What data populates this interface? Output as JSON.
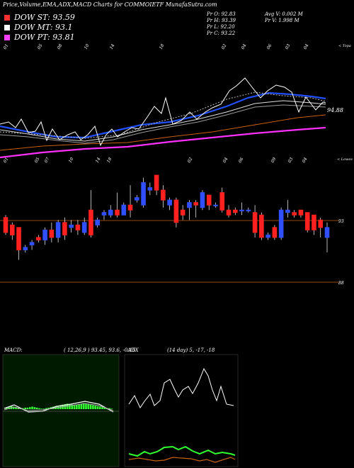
{
  "title": "Price,Volume,EMA,ADX,MACD Charts for COMMOIETF MunafaSutra.com",
  "legend": [
    {
      "label": "DOW ST: 93.59",
      "color": "#ff3030"
    },
    {
      "label": "DOW MT: 93.1",
      "color": "#ffffff"
    },
    {
      "label": "DOW PT: 93.81",
      "color": "#ff40ff"
    }
  ],
  "stats": {
    "pr_o": "Pr O: 92.83",
    "pr_h": "Pr H: 93.39",
    "pr_l": "Pr L: 92.20",
    "pr_c": "Pr C: 93.22",
    "avg_v": "Avg V: 0.002 M",
    "pr_v": "Pr V: 1.998 M"
  },
  "top_panel": {
    "right_label": "< Topa",
    "price_label": "94.88",
    "date_ticks": [
      "01",
      "05",
      "08",
      "10",
      "14",
      "18",
      "02",
      "04",
      "06",
      "03",
      "04"
    ]
  },
  "mid_panel": {
    "right_label": "< Lowes",
    "date_ticks": [
      "01",
      "05",
      "07",
      "10",
      "14",
      "18",
      "02",
      "04",
      "06",
      "09",
      "03",
      "04"
    ],
    "price_labels": [
      "93",
      "88"
    ]
  },
  "macd": {
    "label": "MACD:",
    "params": "( 12,26,9 ) 93.45, 93.6, -0.15"
  },
  "adx": {
    "label": "ADX",
    "params": "(14 day) 5, -17, -18"
  },
  "colors": {
    "up": "#3050ff",
    "down": "#ff2020",
    "ema_blue": "#2050ff",
    "ema_orange": "#c86010",
    "ema_magenta": "#ff30ff",
    "macd_green": "#30ff30",
    "adx_green": "#30ff30",
    "adx_brown": "#c86010"
  },
  "chart_data": {
    "type": "candlestick",
    "candles": [
      {
        "o": 93.6,
        "h": 93.7,
        "l": 92.9,
        "c": 93.0
      },
      {
        "o": 93.3,
        "h": 93.4,
        "l": 92.7,
        "c": 92.9
      },
      {
        "o": 93.2,
        "h": 93.2,
        "l": 91.9,
        "c": 92.3
      },
      {
        "o": 92.3,
        "h": 92.5,
        "l": 92.2,
        "c": 92.4
      },
      {
        "o": 92.5,
        "h": 92.7,
        "l": 92.3,
        "c": 92.6
      },
      {
        "o": 92.8,
        "h": 92.9,
        "l": 92.6,
        "c": 92.7
      },
      {
        "o": 92.7,
        "h": 93.2,
        "l": 92.5,
        "c": 93.1
      },
      {
        "o": 93.1,
        "h": 93.4,
        "l": 92.6,
        "c": 92.8
      },
      {
        "o": 92.8,
        "h": 93.5,
        "l": 92.6,
        "c": 93.4
      },
      {
        "o": 93.4,
        "h": 93.6,
        "l": 92.7,
        "c": 92.9
      },
      {
        "o": 93.2,
        "h": 93.5,
        "l": 93.0,
        "c": 93.3
      },
      {
        "o": 93.3,
        "h": 93.5,
        "l": 92.9,
        "c": 93.1
      },
      {
        "o": 93.0,
        "h": 93.6,
        "l": 92.9,
        "c": 93.4
      },
      {
        "o": 93.9,
        "h": 94.7,
        "l": 92.8,
        "c": 92.9
      },
      {
        "o": 93.3,
        "h": 93.6,
        "l": 93.2,
        "c": 93.5
      },
      {
        "o": 93.7,
        "h": 93.9,
        "l": 93.5,
        "c": 93.8
      },
      {
        "o": 93.7,
        "h": 94.1,
        "l": 93.6,
        "c": 93.9
      },
      {
        "o": 93.9,
        "h": 94.6,
        "l": 93.6,
        "c": 93.7
      },
      {
        "o": 93.7,
        "h": 94.2,
        "l": 93.7,
        "c": 94.1
      },
      {
        "o": 94.1,
        "h": 94.9,
        "l": 93.6,
        "c": 93.9
      },
      {
        "o": 94.3,
        "h": 94.5,
        "l": 94.2,
        "c": 94.4
      },
      {
        "o": 94.1,
        "h": 95.2,
        "l": 94.0,
        "c": 95.0
      },
      {
        "o": 94.7,
        "h": 95.0,
        "l": 94.5,
        "c": 94.8
      },
      {
        "o": 95.3,
        "h": 95.3,
        "l": 94.5,
        "c": 94.7
      },
      {
        "o": 94.7,
        "h": 94.9,
        "l": 94.0,
        "c": 94.3
      },
      {
        "o": 94.1,
        "h": 94.4,
        "l": 93.9,
        "c": 94.3
      },
      {
        "o": 94.3,
        "h": 94.4,
        "l": 93.2,
        "c": 93.4
      },
      {
        "o": 93.9,
        "h": 94.1,
        "l": 93.5,
        "c": 93.7
      },
      {
        "o": 94.0,
        "h": 94.3,
        "l": 93.5,
        "c": 94.2
      },
      {
        "o": 94.2,
        "h": 94.3,
        "l": 93.6,
        "c": 94.1
      },
      {
        "o": 94.0,
        "h": 94.7,
        "l": 93.9,
        "c": 94.6
      },
      {
        "o": 94.5,
        "h": 94.5,
        "l": 93.9,
        "c": 94.1
      },
      {
        "o": 94.1,
        "h": 94.2,
        "l": 94.0,
        "c": 94.1
      },
      {
        "o": 94.6,
        "h": 94.8,
        "l": 93.8,
        "c": 93.9
      },
      {
        "o": 93.9,
        "h": 94.1,
        "l": 93.6,
        "c": 93.7
      },
      {
        "o": 93.9,
        "h": 94.0,
        "l": 93.7,
        "c": 93.8
      },
      {
        "o": 93.9,
        "h": 94.2,
        "l": 93.7,
        "c": 93.9
      },
      {
        "o": 93.9,
        "h": 94.0,
        "l": 93.8,
        "c": 93.9
      },
      {
        "o": 93.8,
        "h": 94.1,
        "l": 92.8,
        "c": 93.0
      },
      {
        "o": 93.7,
        "h": 93.8,
        "l": 92.7,
        "c": 92.8
      },
      {
        "o": 92.8,
        "h": 93.0,
        "l": 92.7,
        "c": 92.9
      },
      {
        "o": 93.2,
        "h": 93.3,
        "l": 92.7,
        "c": 92.8
      },
      {
        "o": 92.8,
        "h": 94.0,
        "l": 92.7,
        "c": 93.9
      },
      {
        "o": 93.8,
        "h": 94.3,
        "l": 93.6,
        "c": 93.9
      },
      {
        "o": 93.8,
        "h": 93.9,
        "l": 93.6,
        "c": 93.7
      },
      {
        "o": 93.9,
        "h": 93.9,
        "l": 93.6,
        "c": 93.7
      },
      {
        "o": 93.8,
        "h": 93.8,
        "l": 93.0,
        "c": 93.1
      },
      {
        "o": 93.7,
        "h": 93.7,
        "l": 92.9,
        "c": 93.1
      },
      {
        "o": 93.5,
        "h": 93.6,
        "l": 92.8,
        "c": 93.2
      },
      {
        "o": 92.8,
        "h": 93.4,
        "l": 92.2,
        "c": 93.2
      }
    ],
    "ylim": [
      88,
      96
    ]
  }
}
